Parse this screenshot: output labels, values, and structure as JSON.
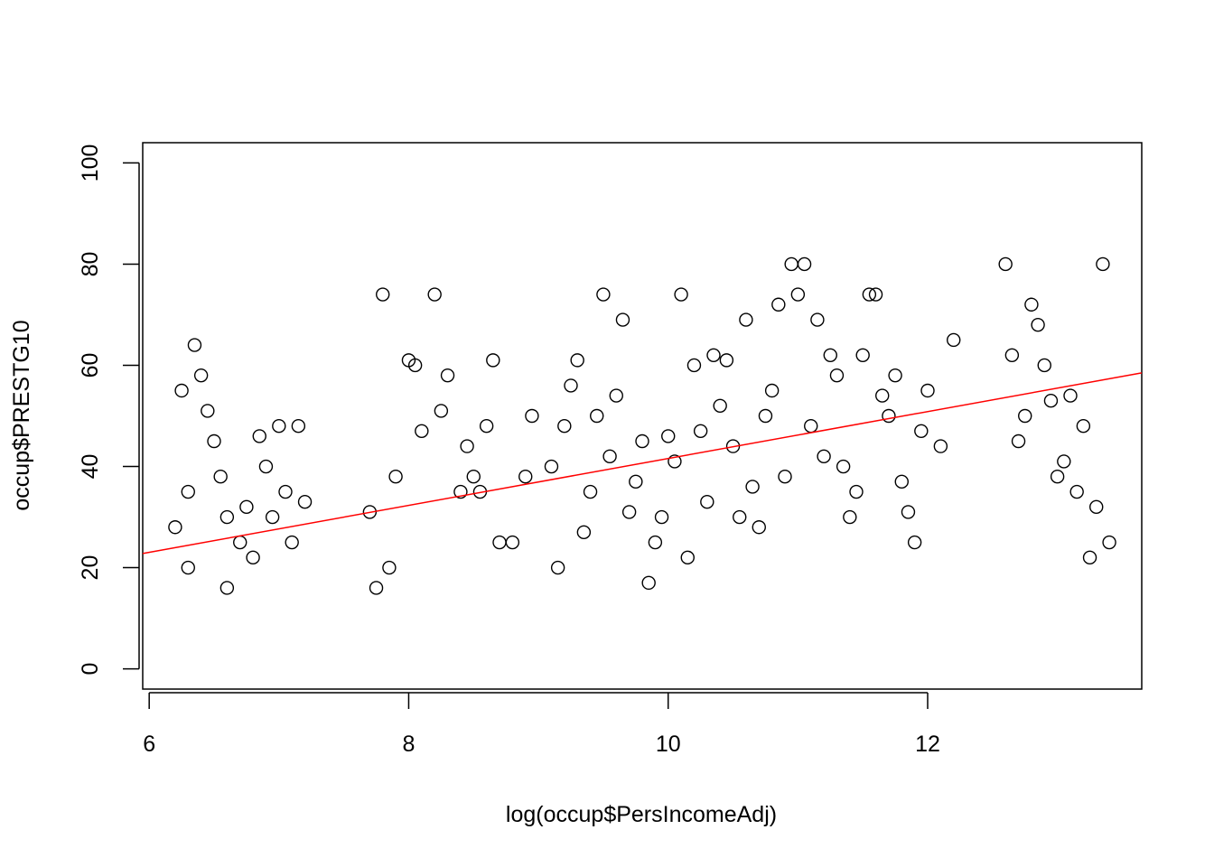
{
  "chart_data": {
    "type": "scatter",
    "title": "",
    "xlabel": "log(occup$PersIncomeAdj)",
    "ylabel": "occup$PRESTG10",
    "xlim": [
      5.95,
      13.65
    ],
    "ylim": [
      -4,
      104
    ],
    "x_ticks": [
      6,
      8,
      10,
      12
    ],
    "y_ticks": [
      0,
      20,
      40,
      60,
      80,
      100
    ],
    "x_tick_labels": [
      "6",
      "8",
      "10",
      "12"
    ],
    "y_tick_labels": [
      "0",
      "20",
      "40",
      "60",
      "80",
      "100"
    ],
    "grid": false,
    "legend": "none",
    "colors": {
      "points": "#000000",
      "fit_line": "#ff0000",
      "axes": "#000000"
    },
    "marker": "open-circle",
    "fit_line": {
      "type": "linear-regression",
      "x": [
        5.95,
        13.65
      ],
      "y": [
        22.8,
        58.5
      ]
    },
    "series": [
      {
        "x": [
          6.3,
          6.4,
          6.5,
          6.6,
          6.8,
          7.0,
          7.1,
          6.2,
          6.35,
          6.9,
          7.2,
          6.45,
          6.7,
          6.85,
          7.05,
          6.25,
          6.55,
          6.75,
          7.15,
          6.6,
          6.3,
          6.95,
          7.7,
          7.9,
          8.0,
          8.2,
          8.4,
          8.6,
          8.8,
          7.8,
          8.1,
          8.3,
          8.5,
          8.7,
          8.9,
          7.75,
          8.05,
          8.45,
          8.65,
          7.85,
          8.25,
          8.55,
          8.95,
          9.1,
          9.2,
          9.3,
          9.4,
          9.5,
          9.6,
          9.7,
          9.8,
          9.9,
          9.15,
          9.35,
          9.55,
          9.75,
          9.95,
          9.25,
          9.45,
          9.65,
          9.85,
          10.0,
          10.1,
          10.2,
          10.3,
          10.4,
          10.5,
          10.6,
          10.7,
          10.8,
          10.9,
          10.05,
          10.25,
          10.45,
          10.65,
          10.85,
          10.15,
          10.35,
          10.55,
          10.75,
          10.95,
          11.0,
          11.1,
          11.2,
          11.3,
          11.4,
          11.5,
          11.6,
          11.7,
          11.8,
          11.9,
          12.0,
          12.1,
          12.2,
          11.05,
          11.25,
          11.45,
          11.65,
          11.85,
          11.15,
          11.35,
          11.55,
          11.75,
          11.95,
          12.6,
          12.7,
          12.8,
          12.9,
          13.0,
          13.1,
          13.2,
          13.3,
          13.4,
          12.65,
          12.85,
          13.05,
          13.25,
          12.75,
          12.95,
          13.15,
          13.35
        ],
        "y": [
          35,
          58,
          45,
          30,
          22,
          48,
          25,
          28,
          64,
          40,
          33,
          51,
          25,
          46,
          35,
          55,
          38,
          32,
          48,
          16,
          20,
          30,
          31,
          38,
          61,
          74,
          35,
          48,
          25,
          74,
          47,
          58,
          38,
          25,
          38,
          16,
          60,
          44,
          61,
          20,
          51,
          35,
          50,
          40,
          48,
          61,
          35,
          74,
          54,
          31,
          45,
          25,
          20,
          27,
          42,
          37,
          30,
          56,
          50,
          69,
          17,
          46,
          74,
          60,
          33,
          52,
          44,
          69,
          28,
          55,
          38,
          41,
          47,
          61,
          36,
          72,
          22,
          62,
          30,
          50,
          80,
          74,
          48,
          42,
          58,
          30,
          62,
          74,
          50,
          37,
          25,
          55,
          44,
          65,
          80,
          62,
          35,
          54,
          31,
          69,
          40,
          74,
          58,
          47,
          80,
          45,
          72,
          60,
          38,
          54,
          48,
          32,
          25,
          62,
          68,
          41,
          22,
          50,
          53,
          35,
          80
        ]
      }
    ]
  }
}
